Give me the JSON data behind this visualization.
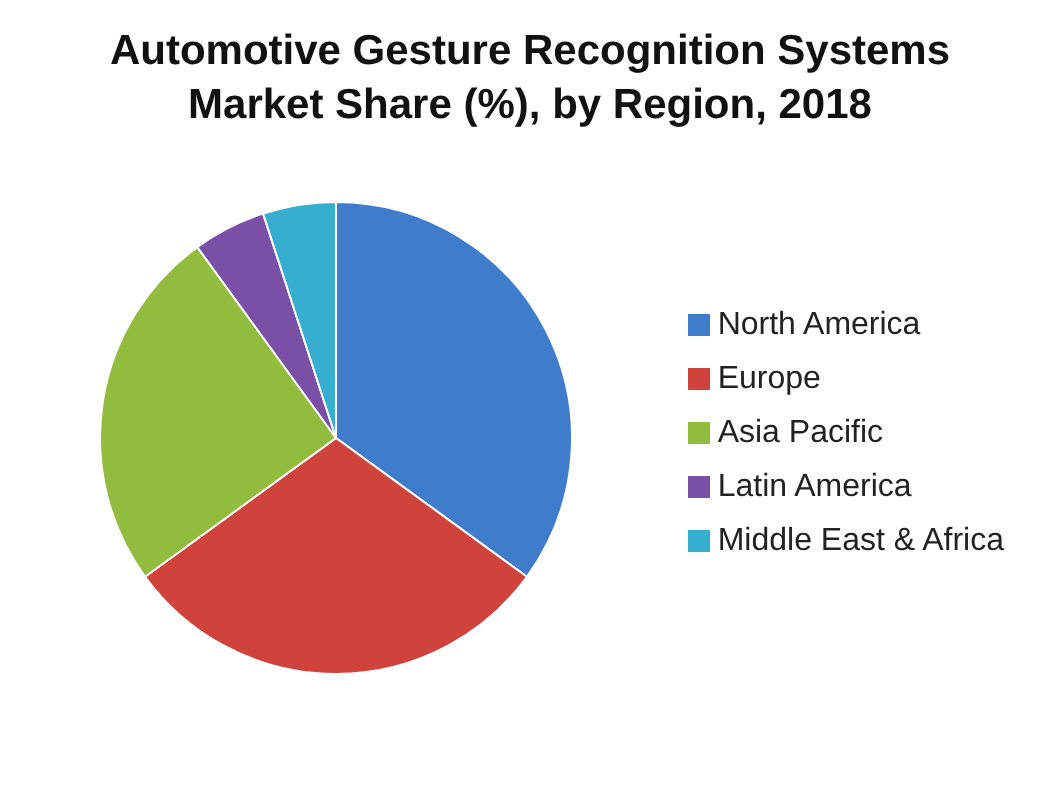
{
  "chart_data": {
    "type": "pie",
    "title": "Automotive Gesture Recognition Systems Market Share (%), by Region, 2018",
    "categories": [
      "North America",
      "Europe",
      "Asia Pacific",
      "Latin America",
      "Middle East & Africa"
    ],
    "values": [
      35,
      30,
      25,
      5,
      5
    ],
    "colors": [
      "#3f7ccc",
      "#d0423c",
      "#92bc3e",
      "#7a4fa6",
      "#36aed0"
    ],
    "legend": "right"
  }
}
